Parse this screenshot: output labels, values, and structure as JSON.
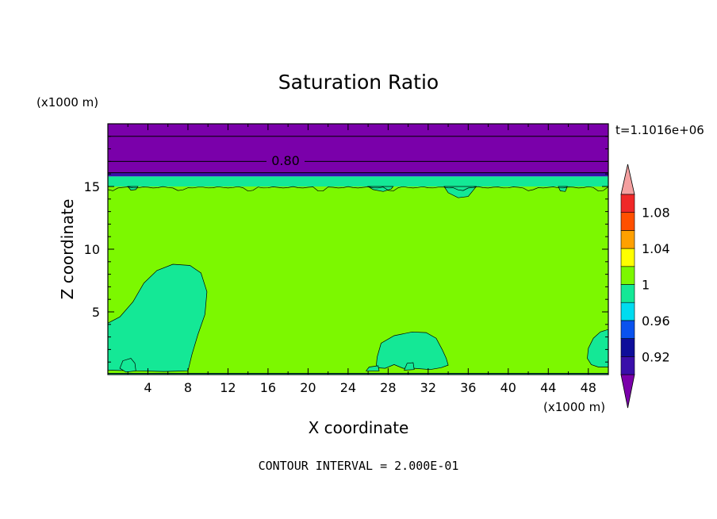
{
  "chart_data": {
    "type": "contour",
    "title": "Saturation Ratio",
    "xlabel": "X coordinate",
    "ylabel": "Z coordinate",
    "x_unit": "(x1000 m)",
    "y_unit": "(x1000 m)",
    "time_label": "t=1.1016e+06",
    "footer": "CONTOUR INTERVAL = 2.000E-01",
    "xlim": [
      0,
      50
    ],
    "ylim": [
      0,
      20
    ],
    "x_ticks": [
      4,
      8,
      12,
      16,
      20,
      24,
      28,
      32,
      36,
      40,
      44,
      48
    ],
    "y_ticks": [
      5,
      10,
      15
    ],
    "contour_label": "0.80",
    "contour_label_value": 0.8,
    "contour_lines_z": [
      19,
      17,
      16.1
    ],
    "colorbar": {
      "levels": [
        0.92,
        0.96,
        1,
        1.04,
        1.08
      ],
      "labels": [
        "0.92",
        "0.96",
        "1",
        "1.04",
        "1.08"
      ],
      "colors": [
        "#7a00aa",
        "#3a0faa",
        "#0e0e9a",
        "#0a52ee",
        "#00dcf0",
        "#14e896",
        "#7cf800",
        "#ffff00",
        "#ffa000",
        "#ff5000",
        "#f02828",
        "#f4a0a0"
      ]
    },
    "fields": [
      {
        "name": "upper_purple",
        "value": "< 0.92",
        "color": "#7a00aa",
        "z_range": [
          16.1,
          20
        ]
      },
      {
        "name": "blue_band",
        "value": "0.92-0.96",
        "color": "#3a0faa",
        "z_range": [
          15.8,
          16.1
        ]
      },
      {
        "name": "green_band",
        "value": "0.96-1",
        "color": "#14e896",
        "z_range": [
          15.0,
          15.8
        ]
      },
      {
        "name": "main",
        "value": "1-1.04",
        "color": "#7cf800",
        "z_range": [
          0.1,
          15.0
        ]
      }
    ]
  }
}
